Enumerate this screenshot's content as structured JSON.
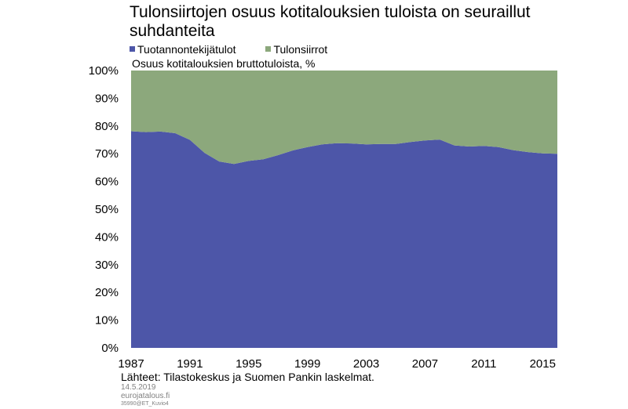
{
  "title": "Tulonsiirtojen osuus kotitalouksien tuloista on seuraillut suhdanteita",
  "footer": {
    "sources": "Lähteet: Tilastokeskus ja Suomen Pankin laskelmat.",
    "date": "14.5.2019",
    "site": "eurojatalous.fi",
    "code": "35990@ET_Kuvio4"
  },
  "chart_data": {
    "type": "area",
    "stacked": true,
    "title": "Tulonsiirtojen osuus kotitalouksien tuloista on seuraillut suhdanteita",
    "ylabel": "Osuus kotitalouksien bruttotuloista, %",
    "xlabel": "",
    "legend_position": "top-left",
    "grid": false,
    "ylim": [
      0,
      100
    ],
    "xlim": [
      1987,
      2016
    ],
    "y_ticks": [
      "0%",
      "10%",
      "20%",
      "30%",
      "40%",
      "50%",
      "60%",
      "70%",
      "80%",
      "90%",
      "100%"
    ],
    "x_ticks": [
      1987,
      1991,
      1995,
      1999,
      2003,
      2007,
      2011,
      2015
    ],
    "x": [
      1987,
      1988,
      1989,
      1990,
      1991,
      1992,
      1993,
      1994,
      1995,
      1996,
      1997,
      1998,
      1999,
      2000,
      2001,
      2002,
      2003,
      2004,
      2005,
      2006,
      2007,
      2008,
      2009,
      2010,
      2011,
      2012,
      2013,
      2014,
      2015,
      2016
    ],
    "series": [
      {
        "name": "Tuotannontekijätulot",
        "color": "#4d56a8",
        "values": [
          78.1,
          77.8,
          78.0,
          77.4,
          75.0,
          70.3,
          67.2,
          66.3,
          67.4,
          68.0,
          69.5,
          71.2,
          72.4,
          73.4,
          73.8,
          73.7,
          73.4,
          73.5,
          73.5,
          74.2,
          74.8,
          75.1,
          73.0,
          72.6,
          72.8,
          72.4,
          71.3,
          70.6,
          70.1,
          70.0
        ]
      },
      {
        "name": "Tulonsiirrot",
        "color": "#8ca87c",
        "values": [
          21.9,
          22.2,
          22.0,
          22.6,
          25.0,
          29.7,
          32.8,
          33.7,
          32.6,
          32.0,
          30.5,
          28.8,
          27.6,
          26.6,
          26.2,
          26.3,
          26.6,
          26.5,
          26.5,
          25.8,
          25.2,
          24.9,
          27.0,
          27.4,
          27.2,
          27.6,
          28.7,
          29.4,
          29.9,
          30.0
        ]
      }
    ]
  }
}
